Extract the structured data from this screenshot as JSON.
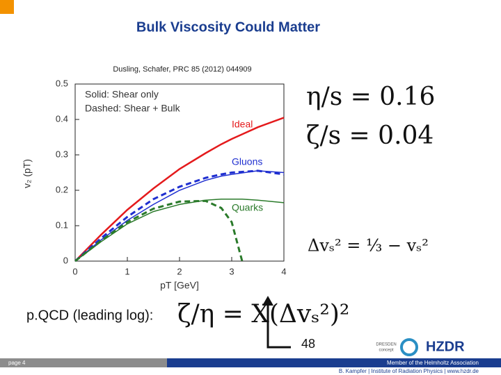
{
  "header": {
    "title": "Bulk Viscosity Could Matter",
    "citation": "Dusling, Schafer, PRC 85 (2012) 044909"
  },
  "chart_data": {
    "type": "line",
    "x_label": "pT [GeV]",
    "y_label": "v₂ (pT)",
    "annotations": [
      "Solid: Shear only",
      "Dashed: Shear + Bulk"
    ],
    "x": [
      0,
      0.5,
      1,
      1.5,
      2,
      2.5,
      2.8,
      3,
      3.2,
      3.5,
      4
    ],
    "series": [
      {
        "name": "Ideal",
        "color": "#e41a1c",
        "dashed": false,
        "values": [
          0,
          0.075,
          0.145,
          0.205,
          0.26,
          0.305,
          0.33,
          0.345,
          0.358,
          0.378,
          0.405
        ]
      },
      {
        "name": "Gluons",
        "color": "#1f2fd0",
        "dashed": false,
        "values": [
          0,
          0.06,
          0.115,
          0.16,
          0.2,
          0.228,
          0.24,
          0.245,
          0.249,
          0.255,
          0.25
        ]
      },
      {
        "color": "#1f2fd0",
        "dashed": true,
        "values": [
          0,
          0.065,
          0.125,
          0.175,
          0.21,
          0.235,
          0.245,
          0.25,
          0.252,
          0.255,
          0.245
        ]
      },
      {
        "name": "Quarks",
        "color": "#2a7a2a",
        "dashed": false,
        "values": [
          0,
          0.055,
          0.105,
          0.14,
          0.16,
          0.172,
          0.175,
          0.175,
          0.175,
          0.172,
          0.165
        ]
      },
      {
        "color": "#2a7a2a",
        "dashed": true,
        "values": [
          0,
          0.058,
          0.11,
          0.148,
          0.168,
          0.17,
          0.15,
          0.11,
          0,
          null,
          null
        ]
      }
    ],
    "xlim": [
      0,
      4
    ],
    "ylim": [
      0,
      0.5
    ],
    "xticks": [
      0,
      1,
      2,
      3,
      4
    ],
    "yticks": [
      0,
      0.1,
      0.2,
      0.3,
      0.4,
      0.5
    ],
    "grid": false
  },
  "formulas": {
    "eta_s": "η/s = 0.16",
    "zeta_s": "ζ/s = 0.04",
    "delta": "Δvₛ² = ⅓ − vₛ²",
    "pqcd_label": "p.QCD (leading log):",
    "pqcd": "ζ/η = X(Δvₛ²)²",
    "number": "48"
  },
  "footer": {
    "page": "page 4",
    "member": "Member of the Helmholtz Association",
    "credit": "B. Kampfer  |  Institute of Radiation Physics  |  www.hzdr.de",
    "logo1": "DRESDEN",
    "logo1b": "concept",
    "logo2": "HZDR"
  }
}
